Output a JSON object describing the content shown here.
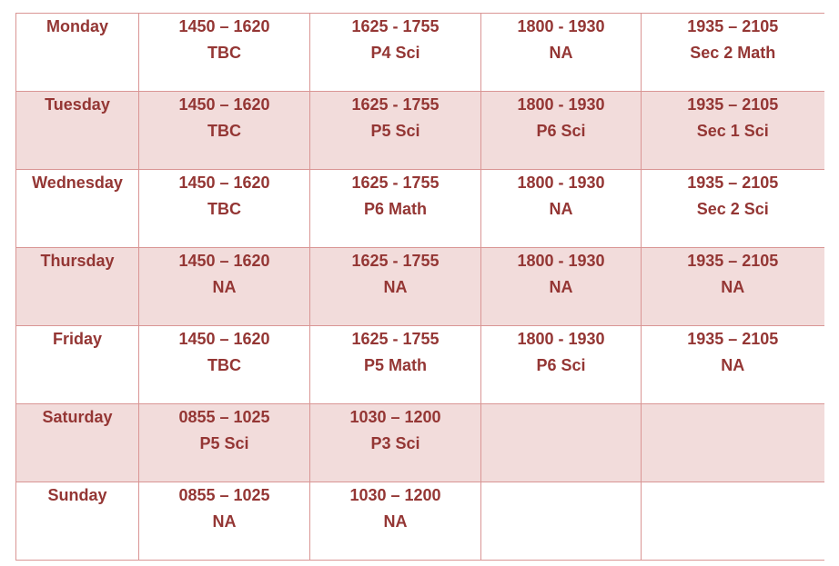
{
  "table": {
    "rows": [
      {
        "day": "Monday",
        "cells": [
          {
            "time": "1450 – 1620",
            "label": "TBC"
          },
          {
            "time": "1625 - 1755",
            "label": "P4 Sci"
          },
          {
            "time": "1800 - 1930",
            "label": "NA"
          },
          {
            "time": "1935 – 2105",
            "label": "Sec 2 Math"
          }
        ]
      },
      {
        "day": "Tuesday",
        "cells": [
          {
            "time": "1450 – 1620",
            "label": "TBC"
          },
          {
            "time": "1625 - 1755",
            "label": "P5 Sci"
          },
          {
            "time": "1800 - 1930",
            "label": "P6 Sci"
          },
          {
            "time": "1935 – 2105",
            "label": "Sec 1 Sci"
          }
        ]
      },
      {
        "day": "Wednesday",
        "cells": [
          {
            "time": "1450 – 1620",
            "label": "TBC"
          },
          {
            "time": "1625 - 1755",
            "label": "P6 Math"
          },
          {
            "time": "1800 - 1930",
            "label": "NA"
          },
          {
            "time": "1935 – 2105",
            "label": "Sec 2 Sci"
          }
        ]
      },
      {
        "day": "Thursday",
        "cells": [
          {
            "time": "1450 – 1620",
            "label": "NA"
          },
          {
            "time": "1625 - 1755",
            "label": "NA"
          },
          {
            "time": "1800 - 1930",
            "label": "NA"
          },
          {
            "time": "1935 – 2105",
            "label": "NA"
          }
        ]
      },
      {
        "day": "Friday",
        "cells": [
          {
            "time": "1450 – 1620",
            "label": "TBC"
          },
          {
            "time": "1625 - 1755",
            "label": "P5 Math"
          },
          {
            "time": "1800 - 1930",
            "label": "P6 Sci"
          },
          {
            "time": "1935 – 2105",
            "label": "NA"
          }
        ]
      },
      {
        "day": "Saturday",
        "cells": [
          {
            "time": "0855 – 1025",
            "label": "P5 Sci"
          },
          {
            "time": "1030 – 1200",
            "label": "P3 Sci"
          }
        ]
      },
      {
        "day": "Sunday",
        "cells": [
          {
            "time": "0855 – 1025",
            "label": "NA"
          },
          {
            "time": "1030 – 1200",
            "label": "NA"
          }
        ]
      }
    ]
  }
}
